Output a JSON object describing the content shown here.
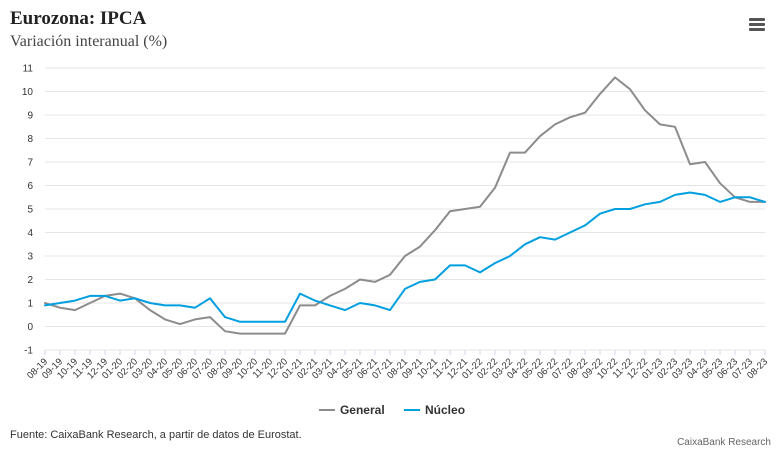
{
  "header": {
    "title": "Eurozona: IPCA",
    "subtitle": "Variación interanual (%)",
    "menu_icon": "hamburger-menu-icon"
  },
  "footer": {
    "source": "Fuente: CaixaBank Research, a partir de datos de Eurostat.",
    "credits": "CaixaBank Research"
  },
  "chart_data": {
    "type": "line",
    "categories": [
      "08-19",
      "09-19",
      "10-19",
      "11-19",
      "12-19",
      "01-20",
      "02-20",
      "03-20",
      "04-20",
      "05-20",
      "06-20",
      "07-20",
      "08-20",
      "09-20",
      "10-20",
      "11-20",
      "12-20",
      "01-21",
      "02-21",
      "03-21",
      "04-21",
      "05-21",
      "06-21",
      "07-21",
      "08-21",
      "09-21",
      "10-21",
      "11-21",
      "12-21",
      "01-22",
      "02-22",
      "03-22",
      "04-22",
      "05-22",
      "06-22",
      "07-22",
      "08-22",
      "09-22",
      "10-22",
      "11-22",
      "12-22",
      "01-23",
      "02-23",
      "03-23",
      "04-23",
      "05-23",
      "06-23",
      "07-23",
      "08-23"
    ],
    "series": [
      {
        "name": "General",
        "color": "#8c8c8c",
        "values": [
          1.0,
          0.8,
          0.7,
          1.0,
          1.3,
          1.4,
          1.2,
          0.7,
          0.3,
          0.1,
          0.3,
          0.4,
          -0.2,
          -0.3,
          -0.3,
          -0.3,
          -0.3,
          0.9,
          0.9,
          1.3,
          1.6,
          2.0,
          1.9,
          2.2,
          3.0,
          3.4,
          4.1,
          4.9,
          5.0,
          5.1,
          5.9,
          7.4,
          7.4,
          8.1,
          8.6,
          8.9,
          9.1,
          9.9,
          10.6,
          10.1,
          9.2,
          8.6,
          8.5,
          6.9,
          7.0,
          6.1,
          5.5,
          5.3,
          5.3
        ]
      },
      {
        "name": "Núcleo",
        "color": "#009fe0",
        "values": [
          0.9,
          1.0,
          1.1,
          1.3,
          1.3,
          1.1,
          1.2,
          1.0,
          0.9,
          0.9,
          0.8,
          1.2,
          0.4,
          0.2,
          0.2,
          0.2,
          0.2,
          1.4,
          1.1,
          0.9,
          0.7,
          1.0,
          0.9,
          0.7,
          1.6,
          1.9,
          2.0,
          2.6,
          2.6,
          2.3,
          2.7,
          3.0,
          3.5,
          3.8,
          3.7,
          4.0,
          4.3,
          4.8,
          5.0,
          5.0,
          5.2,
          5.3,
          5.6,
          5.7,
          5.6,
          5.3,
          5.5,
          5.5,
          5.3
        ]
      }
    ],
    "yticks": [
      -1,
      0,
      1,
      2,
      3,
      4,
      5,
      6,
      7,
      8,
      9,
      10,
      11
    ],
    "ylim": [
      -1,
      11
    ],
    "grid": true,
    "legend_position": "bottom-center"
  }
}
